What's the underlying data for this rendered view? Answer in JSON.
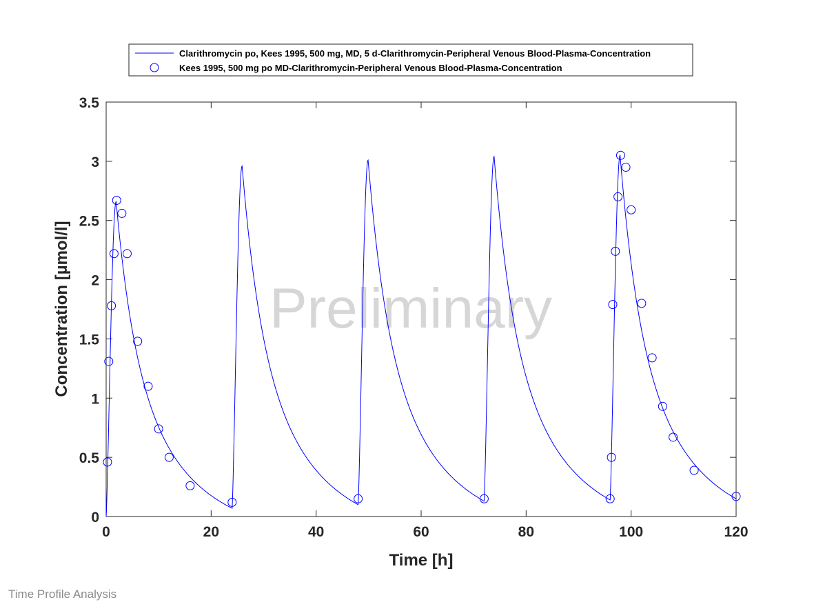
{
  "footer_text": "Time Profile Analysis",
  "chart_data": {
    "type": "line",
    "watermark": "Preliminary",
    "xlabel": "Time [h]",
    "ylabel": "Concentration [µmol/l]",
    "xlim": [
      0,
      120
    ],
    "ylim": [
      0,
      3.5
    ],
    "xticks": [
      0,
      20,
      40,
      60,
      80,
      100,
      120
    ],
    "yticks": [
      0,
      0.5,
      1,
      1.5,
      2,
      2.5,
      3,
      3.5
    ],
    "ytick_labels": [
      "0",
      "0.5",
      "1",
      "1.5",
      "2",
      "2.5",
      "3",
      "3.5"
    ],
    "grid": false,
    "legend_position": "top",
    "color": "#0000ff",
    "series": [
      {
        "name": "Clarithromycin po, Kees 1995, 500 mg, MD, 5 d-Clarithromycin-Peripheral Venous Blood-Plasma-Concentration",
        "style": "line",
        "dose_times": [
          0,
          24,
          48,
          72,
          96
        ],
        "peak_values": [
          2.66,
          2.96,
          3.01,
          3.04,
          3.05
        ],
        "peak_offset": 1.9,
        "trough_values": [
          0.07,
          0.1,
          0.13,
          0.14,
          0.15
        ],
        "end_value": 0.15
      },
      {
        "name": "Kees 1995, 500 mg po MD-Clarithromycin-Peripheral Venous Blood-Plasma-Concentration",
        "style": "marker-circle",
        "x": [
          0.25,
          0.5,
          1,
          1.5,
          2,
          3,
          4,
          6,
          8,
          10,
          12,
          16,
          24,
          48,
          72,
          96,
          96.25,
          96.5,
          97,
          97.5,
          98,
          99,
          100,
          102,
          104,
          106,
          108,
          112,
          120
        ],
        "y": [
          0.46,
          1.31,
          1.78,
          2.22,
          2.67,
          2.56,
          2.22,
          1.48,
          1.1,
          0.74,
          0.5,
          0.26,
          0.12,
          0.15,
          0.15,
          0.15,
          0.5,
          1.79,
          2.24,
          2.7,
          3.05,
          2.95,
          2.59,
          1.8,
          1.34,
          0.93,
          0.67,
          0.39,
          0.17
        ]
      }
    ]
  }
}
